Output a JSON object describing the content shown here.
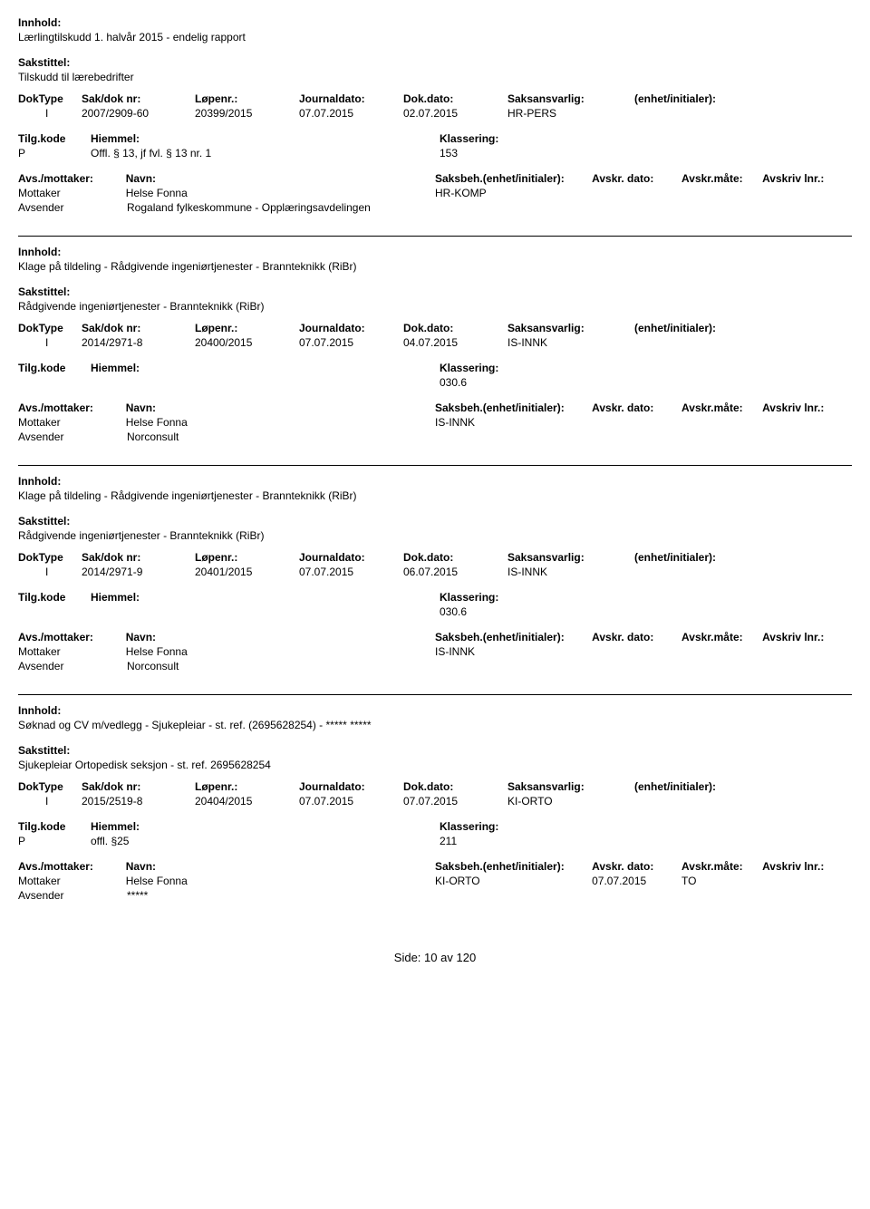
{
  "labels": {
    "innhold": "Innhold:",
    "sakstittel": "Sakstittel:",
    "doktype": "DokType",
    "sakdok": "Sak/dok nr:",
    "lopenr": "Løpenr.:",
    "journaldato": "Journaldato:",
    "dokdato": "Dok.dato:",
    "saksansvarlig": "Saksansvarlig:",
    "enhet": "(enhet/initialer):",
    "tilgkode": "Tilg.kode",
    "hiemmel": "Hiemmel:",
    "klassering": "Klassering:",
    "avsmottaker": "Avs./mottaker:",
    "navn": "Navn:",
    "saksbeh": "Saksbeh.",
    "saksbeh_enhet": "(enhet/initialer):",
    "avskrdato": "Avskr. dato:",
    "avskrmate": "Avskr.måte:",
    "avskrivlnr": "Avskriv lnr.:",
    "mottaker": "Mottaker",
    "avsender": "Avsender"
  },
  "records": [
    {
      "innhold": "Lærlingtilskudd 1. halvår 2015 - endelig rapport",
      "sakstittel": "Tilskudd til lærebedrifter",
      "doktype": "I",
      "sakdok": "2007/2909-60",
      "lopenr": "20399/2015",
      "journaldato": "07.07.2015",
      "dokdato": "02.07.2015",
      "saksansvarlig": "HR-PERS",
      "enhet": "",
      "tilgkode": "P",
      "hiemmel": "Offl. § 13, jf fvl. § 13 nr. 1",
      "klassering": "153",
      "mottaker_navn": "Helse Fonna",
      "saksbeh": "HR-KOMP",
      "avskrdato": "",
      "avskrmate": "",
      "avsender_navn": "Rogaland fylkeskommune - Opplæringsavdelingen"
    },
    {
      "innhold": "Klage på tildeling - Rådgivende ingeniørtjenester - Brannteknikk (RiBr)",
      "sakstittel": "Rådgivende ingeniørtjenester - Brannteknikk (RiBr)",
      "doktype": "I",
      "sakdok": "2014/2971-8",
      "lopenr": "20400/2015",
      "journaldato": "07.07.2015",
      "dokdato": "04.07.2015",
      "saksansvarlig": "IS-INNK",
      "enhet": "",
      "tilgkode": "",
      "hiemmel": "",
      "klassering": "030.6",
      "mottaker_navn": "Helse Fonna",
      "saksbeh": "IS-INNK",
      "avskrdato": "",
      "avskrmate": "",
      "avsender_navn": "Norconsult"
    },
    {
      "innhold": "Klage på tildeling - Rådgivende ingeniørtjenester - Brannteknikk (RiBr)",
      "sakstittel": "Rådgivende ingeniørtjenester - Brannteknikk (RiBr)",
      "doktype": "I",
      "sakdok": "2014/2971-9",
      "lopenr": "20401/2015",
      "journaldato": "07.07.2015",
      "dokdato": "06.07.2015",
      "saksansvarlig": "IS-INNK",
      "enhet": "",
      "tilgkode": "",
      "hiemmel": "",
      "klassering": "030.6",
      "mottaker_navn": "Helse Fonna",
      "saksbeh": "IS-INNK",
      "avskrdato": "",
      "avskrmate": "",
      "avsender_navn": "Norconsult"
    },
    {
      "innhold": "Søknad og CV m/vedlegg - Sjukepleiar - st. ref. (2695628254) - ***** *****",
      "sakstittel": "Sjukepleiar Ortopedisk seksjon - st. ref. 2695628254",
      "doktype": "I",
      "sakdok": "2015/2519-8",
      "lopenr": "20404/2015",
      "journaldato": "07.07.2015",
      "dokdato": "07.07.2015",
      "saksansvarlig": "KI-ORTO",
      "enhet": "",
      "tilgkode": "P",
      "hiemmel": "offl. §25",
      "klassering": "211",
      "mottaker_navn": "Helse Fonna",
      "saksbeh": "KI-ORTO",
      "avskrdato": "07.07.2015",
      "avskrmate": "TO",
      "avsender_navn": "*****"
    }
  ],
  "footer": {
    "side_label": "Side:",
    "page_current": "10",
    "page_av": "av",
    "page_total": "120"
  }
}
